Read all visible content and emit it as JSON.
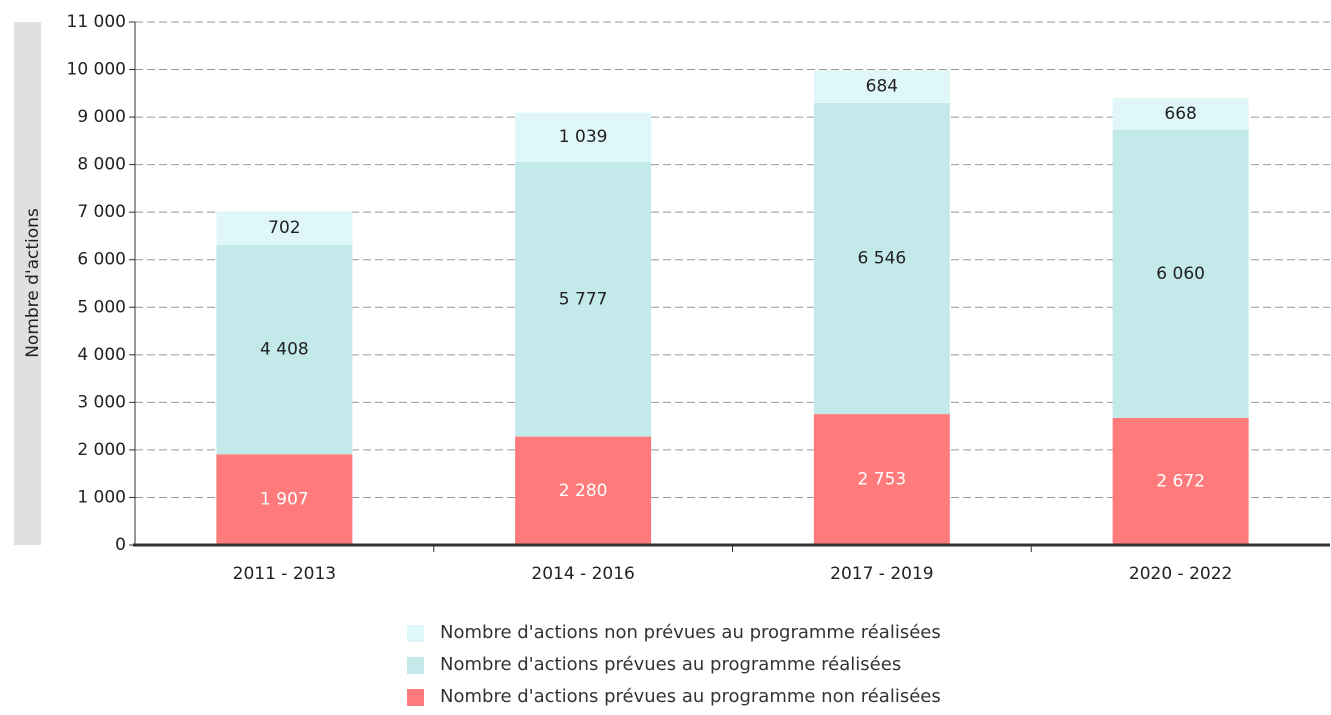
{
  "chart_data": {
    "type": "bar",
    "stacked": true,
    "grid": true,
    "ylabel": "Nombre d'actions",
    "categories": [
      "2011 - 2013",
      "2014 - 2016",
      "2017 - 2019",
      "2020 - 2022"
    ],
    "series": [
      {
        "name": "Nombre d'actions prévues au programme non réalisées",
        "color": "#ff7b7b",
        "label_color": "#ffffff",
        "values": [
          1907,
          2280,
          2753,
          2672
        ],
        "value_labels": [
          "1 907",
          "2 280",
          "2 753",
          "2 672"
        ]
      },
      {
        "name": "Nombre d'actions prévues au programme réalisées",
        "color": "#c3e9ea",
        "label_color": "#222222",
        "values": [
          4408,
          5777,
          6546,
          6060
        ],
        "value_labels": [
          "4 408",
          "5 777",
          "6 546",
          "6 060"
        ]
      },
      {
        "name": "Nombre d'actions non prévues au programme réalisées",
        "color": "#e0f7f9",
        "label_color": "#222222",
        "values": [
          702,
          1039,
          684,
          668
        ],
        "value_labels": [
          "702",
          "1 039",
          "684",
          "668"
        ]
      }
    ],
    "ylim": [
      0,
      11000
    ],
    "yticks": [
      0,
      {
        "value": 1000,
        "label": "1 000"
      },
      {
        "value": 2000,
        "label": "2 000"
      },
      {
        "value": 3000,
        "label": "3 000"
      },
      {
        "value": 4000,
        "label": "4 000"
      },
      {
        "value": 5000,
        "label": "5 000"
      },
      {
        "value": 6000,
        "label": "6 000"
      },
      {
        "value": 7000,
        "label": "7 000"
      },
      {
        "value": 8000,
        "label": "8 000"
      },
      {
        "value": 9000,
        "label": "9 000"
      },
      {
        "value": 10000,
        "label": "10 000"
      },
      {
        "value": 11000,
        "label": "11 000"
      }
    ]
  }
}
